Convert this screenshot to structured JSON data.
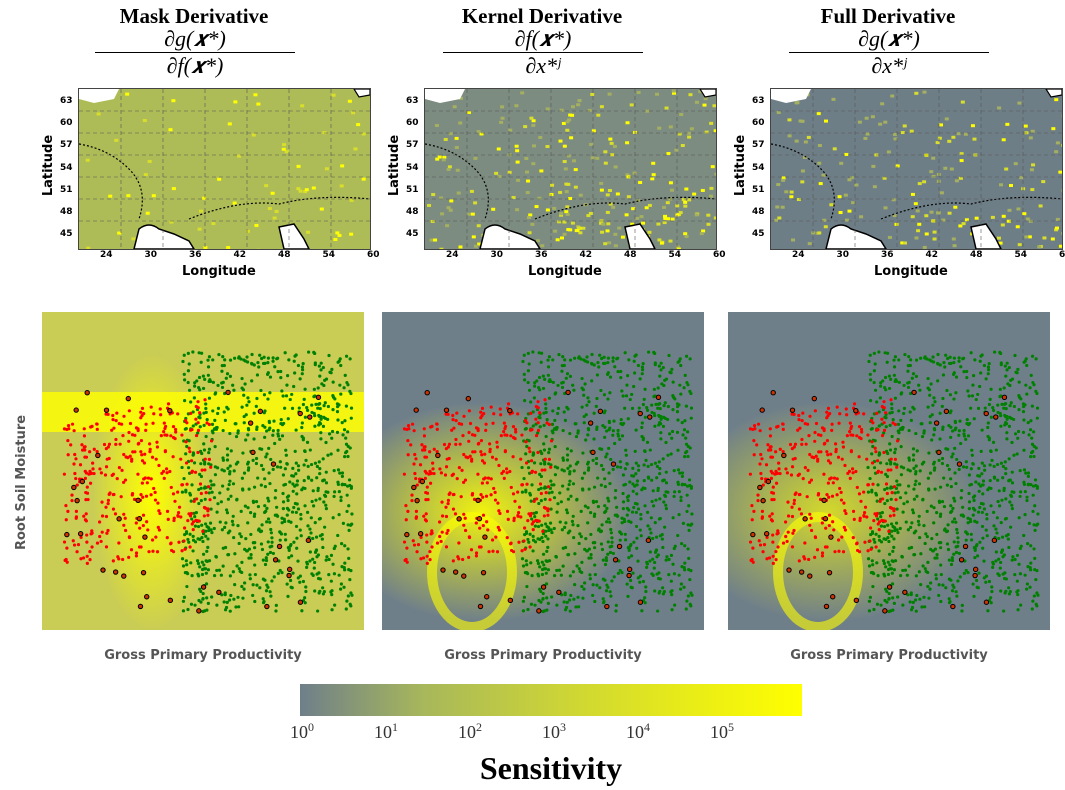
{
  "panels": [
    {
      "title": "Mask Derivative",
      "num": "∂g(𝒙*)",
      "den": "∂f(𝒙*)",
      "base": "#aebc58",
      "hot": 0.25
    },
    {
      "title": "Kernel Derivative",
      "num": "∂f(𝒙*)",
      "den": "∂x*ʲ",
      "base": "#7d8c80",
      "hot": 0.55
    },
    {
      "title": "Full Derivative",
      "num": "∂g(𝒙*)",
      "den": "∂x*ʲ",
      "base": "#6e7e86",
      "hot": 0.3
    }
  ],
  "map_axes": {
    "xlabel": "Longitude",
    "ylabel": "Latitude",
    "xticks": [
      "24",
      "30",
      "36",
      "42",
      "48",
      "54",
      "60"
    ],
    "yticks": [
      "63",
      "60",
      "57",
      "54",
      "51",
      "48",
      "45"
    ]
  },
  "scatter_axes": {
    "xlabel": "Gross Primary Productivity",
    "ylabel": "Root Soil Moisture"
  },
  "colorbar": {
    "title": "Sensitivity",
    "ticks": [
      {
        "base": "10",
        "exp": "0"
      },
      {
        "base": "10",
        "exp": "1"
      },
      {
        "base": "10",
        "exp": "2"
      },
      {
        "base": "10",
        "exp": "3"
      },
      {
        "base": "10",
        "exp": "4"
      },
      {
        "base": "10",
        "exp": "5"
      }
    ],
    "colors": [
      "#6f7f8a",
      "#a8b85a",
      "#c9d23a",
      "#e6ea1a",
      "#ffff00"
    ],
    "scale": "log"
  },
  "chart_data": [
    {
      "type": "heatmap",
      "title": "Mask Derivative",
      "xlabel": "Longitude",
      "ylabel": "Latitude",
      "xlim": [
        20,
        60
      ],
      "ylim": [
        43,
        65
      ]
    },
    {
      "type": "heatmap",
      "title": "Kernel Derivative",
      "xlabel": "Longitude",
      "ylabel": "Latitude",
      "xlim": [
        20,
        60
      ],
      "ylim": [
        43,
        65
      ]
    },
    {
      "type": "heatmap",
      "title": "Full Derivative",
      "xlabel": "Longitude",
      "ylabel": "Latitude",
      "xlim": [
        20,
        60
      ],
      "ylim": [
        43,
        65
      ]
    },
    {
      "type": "scatter",
      "xlabel": "Gross Primary Productivity",
      "ylabel": "Root Soil Moisture",
      "series": [
        {
          "color": "#ff0000",
          "marker": "dot"
        },
        {
          "color": "#008000",
          "marker": "dot"
        },
        {
          "color": "#000000",
          "marker": "ring"
        }
      ]
    }
  ]
}
